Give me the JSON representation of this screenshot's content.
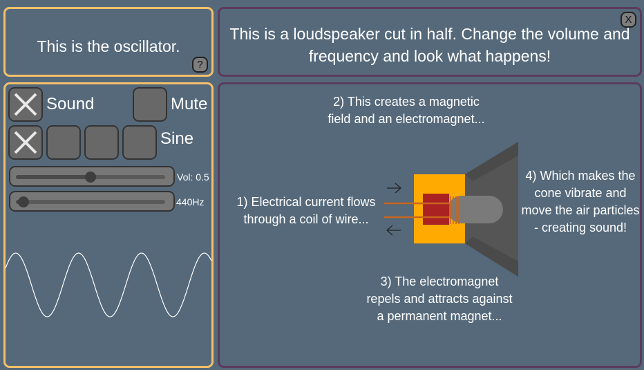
{
  "oscillator": {
    "title": "This is the oscillator.",
    "help_label": "?",
    "sound_label": "Sound",
    "mute_label": "Mute",
    "waveform_label": "Sine",
    "volume_readout": "Vol: 0.5",
    "frequency_readout": "440Hz",
    "volume_level": 0.5,
    "frequency_level": 0.05,
    "sound_on": true,
    "mute_on": false,
    "waveform_options": [
      "sine-icon",
      "square-icon",
      "sawtooth-icon",
      "triangle-icon"
    ],
    "waveform_selected": 0
  },
  "speaker": {
    "title": "This is a loudspeaker cut in half. Change the volume and frequency and look what happens!",
    "close_label": "X",
    "step1": "1) Electrical current flows through a coil of wire...",
    "step2": "2) This creates a magnetic field and an electromagnet...",
    "step3": "3) The electromagnet repels and attracts against a permanent magnet...",
    "step4": "4) Which makes the cone vibrate and move the air particles - creating sound!"
  },
  "colors": {
    "background": "#55697a",
    "oscillator_border": "#f5c06a",
    "speaker_border": "#5a3b5e",
    "magnet": "#ffaa00",
    "coil": "#aa2222",
    "wire": "#c8661e",
    "cone": "#555555"
  }
}
